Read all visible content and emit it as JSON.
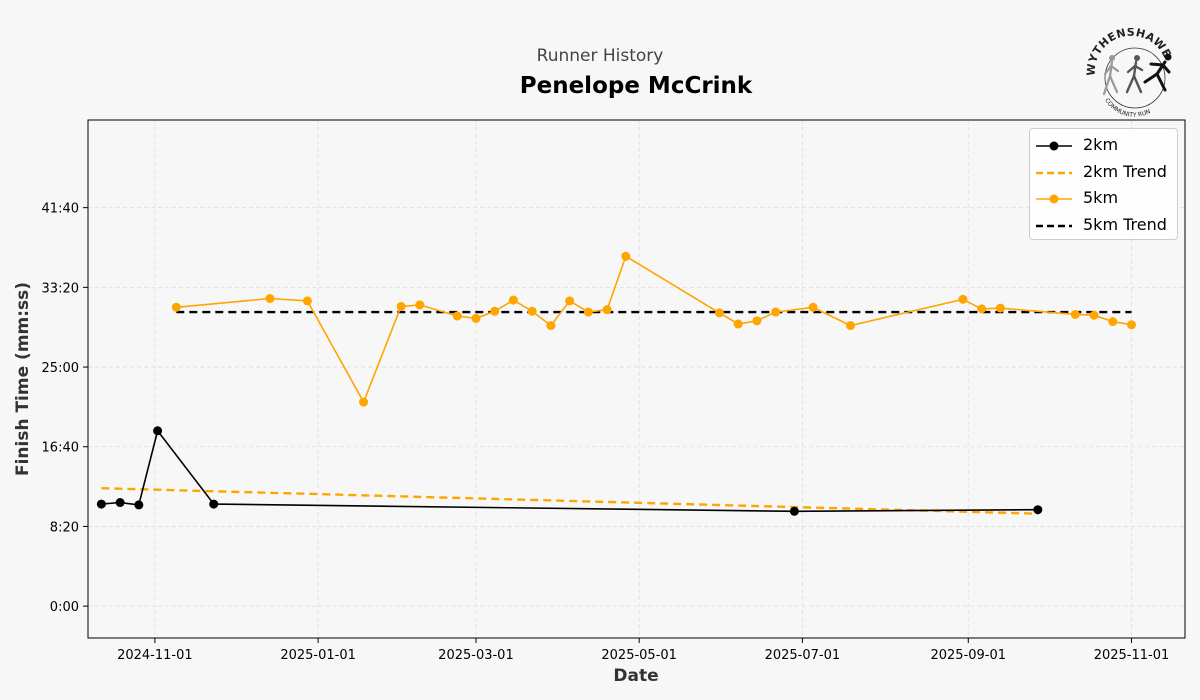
{
  "header": {
    "supertitle": "Runner History",
    "title": "Penelope McCrink"
  },
  "logo": {
    "icon": "wythenshawe-runners-logo",
    "text_top": "WYTHENSHAWE",
    "text_bottom": "COMMUNITY RUN"
  },
  "chart_data": {
    "type": "line",
    "xlabel": "Date",
    "ylabel": "Finish Time (mm:ss)",
    "x_ticks": [
      "2024-11-01",
      "2025-01-01",
      "2025-03-01",
      "2025-05-01",
      "2025-07-01",
      "2025-09-01",
      "2025-11-01"
    ],
    "y_ticks": [
      "0:00",
      "8:20",
      "16:40",
      "25:00",
      "33:20",
      "41:40"
    ],
    "xlim": [
      "2024-10-07",
      "2025-11-21"
    ],
    "ylim": [
      "-3:20",
      "50:50"
    ],
    "grid": true,
    "legend_position": "top-right",
    "series": [
      {
        "name": "2km",
        "color": "#000000",
        "style": "solid-markers",
        "points": [
          {
            "x": "2024-10-12",
            "y": "10:40"
          },
          {
            "x": "2024-10-19",
            "y": "10:50"
          },
          {
            "x": "2024-10-26",
            "y": "10:35"
          },
          {
            "x": "2024-11-02",
            "y": "18:20"
          },
          {
            "x": "2024-11-23",
            "y": "10:40"
          },
          {
            "x": "2025-06-28",
            "y": "9:55"
          },
          {
            "x": "2025-09-27",
            "y": "10:05"
          }
        ]
      },
      {
        "name": "2km Trend",
        "color": "#ffa500",
        "style": "dashed",
        "points": [
          {
            "x": "2024-10-12",
            "y": "12:20"
          },
          {
            "x": "2025-09-27",
            "y": "9:40"
          }
        ]
      },
      {
        "name": "5km",
        "color": "#ffa500",
        "style": "solid-markers",
        "points": [
          {
            "x": "2024-11-09",
            "y": "31:15"
          },
          {
            "x": "2024-12-14",
            "y": "32:10"
          },
          {
            "x": "2024-12-28",
            "y": "31:55"
          },
          {
            "x": "2025-01-18",
            "y": "21:20"
          },
          {
            "x": "2025-02-01",
            "y": "31:20"
          },
          {
            "x": "2025-02-08",
            "y": "31:30"
          },
          {
            "x": "2025-02-22",
            "y": "30:20"
          },
          {
            "x": "2025-03-01",
            "y": "30:05"
          },
          {
            "x": "2025-03-08",
            "y": "30:50"
          },
          {
            "x": "2025-03-15",
            "y": "32:00"
          },
          {
            "x": "2025-03-22",
            "y": "30:50"
          },
          {
            "x": "2025-03-29",
            "y": "29:20"
          },
          {
            "x": "2025-04-05",
            "y": "31:55"
          },
          {
            "x": "2025-04-12",
            "y": "30:45"
          },
          {
            "x": "2025-04-19",
            "y": "31:00"
          },
          {
            "x": "2025-04-26",
            "y": "36:35"
          },
          {
            "x": "2025-05-31",
            "y": "30:40"
          },
          {
            "x": "2025-06-07",
            "y": "29:30"
          },
          {
            "x": "2025-06-14",
            "y": "29:50"
          },
          {
            "x": "2025-06-21",
            "y": "30:45"
          },
          {
            "x": "2025-07-05",
            "y": "31:15"
          },
          {
            "x": "2025-07-19",
            "y": "29:20"
          },
          {
            "x": "2025-08-30",
            "y": "32:05"
          },
          {
            "x": "2025-09-06",
            "y": "31:05"
          },
          {
            "x": "2025-09-13",
            "y": "31:10"
          },
          {
            "x": "2025-10-11",
            "y": "30:30"
          },
          {
            "x": "2025-10-18",
            "y": "30:25"
          },
          {
            "x": "2025-10-25",
            "y": "29:45"
          },
          {
            "x": "2025-11-01",
            "y": "29:25"
          }
        ]
      },
      {
        "name": "5km Trend",
        "color": "#000000",
        "style": "dashed",
        "points": [
          {
            "x": "2024-11-09",
            "y": "30:45"
          },
          {
            "x": "2025-11-01",
            "y": "30:45"
          }
        ]
      }
    ]
  }
}
